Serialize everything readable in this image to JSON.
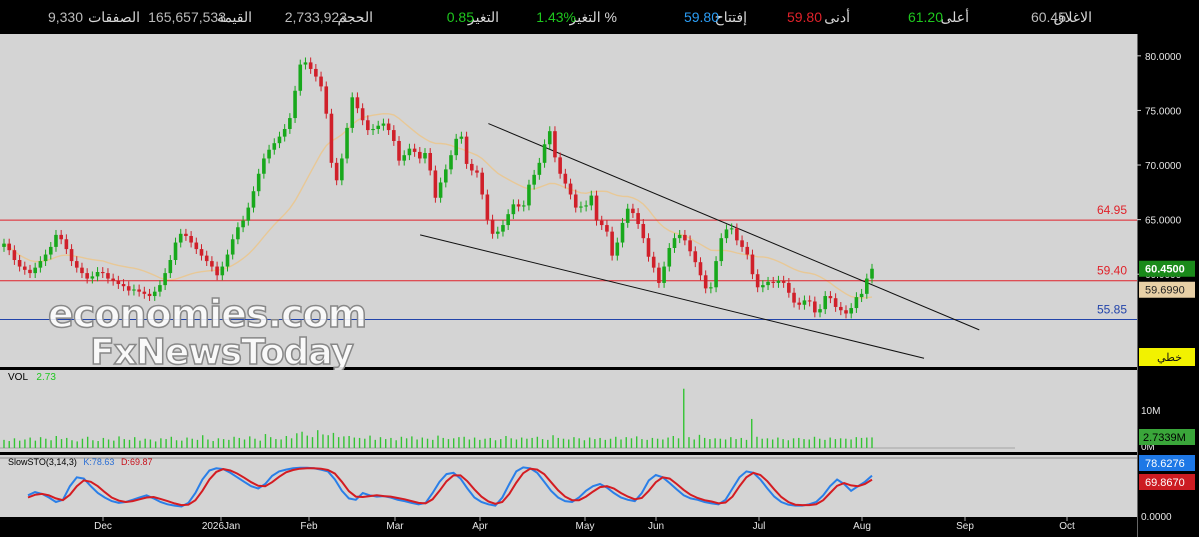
{
  "topbar": {
    "items": [
      {
        "label": "الاغلاق",
        "value": "60.45",
        "value_color": "#bcbcbc"
      },
      {
        "label": "أعلى",
        "value": "61.20",
        "value_color": "#1ec71e"
      },
      {
        "label": "أدنى",
        "value": "59.80",
        "value_color": "#e0222a"
      },
      {
        "label": "إفتتاح",
        "value": "59.80",
        "value_color": "#2b9df4"
      },
      {
        "label": "التغير %",
        "value": "1.43%",
        "value_color": "#1ec71e"
      },
      {
        "label": "التغير",
        "value": "0.85",
        "value_color": "#1ec71e"
      },
      {
        "label": "الحجم",
        "value": "2,733,923",
        "value_color": "#bcbcbc"
      },
      {
        "label": "القيمة",
        "value": "165,657,533",
        "value_color": "#bcbcbc"
      },
      {
        "label": "الصفقات",
        "value": "9,330",
        "value_color": "#bcbcbc"
      }
    ]
  },
  "watermark": {
    "line1": "economies.com",
    "line2": "FxNewsToday"
  },
  "chart_data": {
    "type": "candlestick",
    "price_axis": {
      "ylim": [
        51.5,
        82.0
      ],
      "ticks": [
        "80.0000",
        "75.0000",
        "70.0000",
        "65.0000",
        "60.0000"
      ]
    },
    "time_axis": {
      "labels": [
        "Dec",
        "2026Jan",
        "Feb",
        "Mar",
        "Apr",
        "May",
        "Jun",
        "Jul",
        "Aug",
        "Sep",
        "Oct"
      ]
    },
    "horizontal_lines": [
      {
        "value": 64.95,
        "label": "64.95",
        "color": "#e0222a"
      },
      {
        "value": 59.4,
        "label": "59.40",
        "color": "#e0222a"
      },
      {
        "value": 55.85,
        "label": "55.85",
        "color": "#2244aa"
      }
    ],
    "wedge_lines": [
      {
        "from": {
          "date": "2026-04-12",
          "value": 73.8
        },
        "to": {
          "date": "2026-09-10",
          "value": 54.9
        }
      },
      {
        "from": {
          "date": "2026-03-22",
          "value": 63.6
        },
        "to": {
          "date": "2026-08-24",
          "value": 52.3
        }
      }
    ],
    "price_badges": {
      "last": "60.4500",
      "ma": "59.6990",
      "line_tool": "خطي"
    },
    "closes": [
      62.8,
      62.2,
      61.3,
      60.7,
      60.4,
      60.1,
      60.6,
      61.2,
      61.8,
      62.5,
      63.6,
      63.2,
      62.3,
      61.2,
      60.6,
      60.1,
      59.6,
      59.8,
      60.2,
      60.1,
      59.6,
      59.4,
      59.1,
      58.9,
      58.5,
      58.6,
      58.4,
      58.2,
      58.0,
      58.4,
      59.0,
      60.1,
      61.3,
      62.9,
      63.7,
      63.5,
      62.9,
      62.3,
      61.7,
      61.2,
      60.7,
      59.9,
      60.7,
      61.8,
      63.2,
      64.3,
      64.9,
      66.1,
      67.6,
      69.2,
      70.6,
      71.4,
      72.0,
      72.6,
      73.3,
      74.3,
      76.8,
      79.2,
      79.4,
      78.8,
      78.1,
      77.2,
      74.7,
      70.2,
      68.6,
      70.6,
      73.4,
      76.2,
      75.2,
      74.1,
      73.2,
      73.3,
      73.6,
      73.8,
      73.2,
      72.2,
      70.4,
      70.9,
      71.5,
      71.2,
      70.6,
      71.1,
      69.5,
      67.0,
      68.4,
      69.6,
      70.9,
      72.4,
      72.6,
      70.1,
      69.5,
      69.3,
      67.3,
      65.0,
      63.7,
      63.9,
      64.5,
      65.5,
      66.4,
      66.2,
      66.3,
      68.2,
      69.1,
      70.2,
      71.9,
      73.1,
      70.7,
      69.2,
      68.3,
      67.3,
      66.1,
      66.2,
      66.3,
      67.2,
      64.9,
      64.5,
      63.9,
      61.7,
      62.9,
      64.7,
      66.0,
      65.6,
      64.6,
      63.3,
      61.6,
      60.6,
      59.2,
      60.7,
      62.4,
      63.3,
      63.6,
      63.1,
      62.1,
      61.1,
      59.9,
      58.7,
      58.8,
      61.2,
      63.3,
      64.1,
      64.2,
      63.1,
      62.5,
      61.8,
      60.0,
      58.8,
      59.0,
      59.3,
      59.2,
      59.4,
      59.2,
      58.3,
      57.4,
      57.2,
      57.6,
      57.5,
      56.5,
      56.8,
      58.0,
      57.8,
      57.0,
      56.7,
      56.4,
      56.9,
      57.9,
      58.2,
      59.6,
      60.5
    ]
  },
  "volume": {
    "label": "VOL",
    "value": "2.73",
    "ticks": [
      "10M",
      "0M"
    ],
    "badge": "2.7339M",
    "values_m": [
      2.1,
      1.8,
      2.5,
      1.9,
      2.2,
      2.7,
      1.9,
      2.8,
      2.4,
      2.0,
      3.1,
      2.3,
      2.6,
      2.0,
      1.7,
      2.4,
      2.9,
      2.0,
      1.8,
      2.6,
      2.2,
      1.9,
      3.0,
      2.3,
      2.1,
      2.8,
      1.9,
      2.4,
      2.2,
      1.7,
      2.5,
      2.3,
      2.9,
      2.0,
      1.9,
      2.7,
      2.4,
      2.1,
      3.3,
      2.2,
      1.8,
      2.5,
      2.3,
      2.1,
      2.9,
      2.6,
      2.2,
      3.0,
      2.4,
      1.9,
      3.6,
      2.8,
      2.3,
      2.2,
      3.1,
      2.5,
      3.8,
      4.2,
      3.2,
      2.8,
      4.6,
      3.5,
      3.3,
      3.9,
      2.8,
      3.0,
      3.1,
      2.7,
      2.6,
      2.4,
      3.2,
      2.1,
      2.8,
      2.3,
      2.6,
      2.0,
      2.9,
      2.5,
      3.0,
      2.2,
      2.7,
      2.4,
      2.1,
      3.2,
      2.6,
      2.3,
      2.5,
      2.8,
      2.9,
      2.2,
      2.7,
      2.1,
      2.4,
      2.6,
      2.0,
      2.3,
      3.1,
      2.5,
      2.2,
      2.7,
      2.4,
      2.6,
      2.9,
      2.3,
      2.1,
      3.3,
      2.6,
      2.4,
      2.2,
      2.8,
      2.5,
      2.0,
      2.7,
      2.3,
      2.6,
      2.1,
      2.4,
      2.9,
      2.2,
      2.8,
      2.5,
      3.0,
      2.3,
      2.1,
      2.6,
      2.4,
      2.2,
      2.7,
      3.1,
      2.5,
      15.3,
      2.8,
      2.2,
      3.4,
      2.6,
      2.3,
      2.5,
      2.4,
      2.2,
      2.8,
      2.3,
      2.6,
      2.1,
      7.5,
      2.9,
      2.4,
      2.5,
      2.2,
      2.7,
      2.3,
      2.0,
      2.5,
      2.6,
      2.3,
      2.2,
      2.9,
      2.4,
      2.1,
      2.7,
      2.3,
      2.5,
      2.4,
      2.2,
      2.8,
      2.6,
      2.7,
      2.73
    ]
  },
  "stochastic": {
    "label": "SlowSTO(3,14,3)",
    "k_text": "K:78.63",
    "d_text": "D:69.87",
    "k_badge": "78.6276",
    "d_badge": "69.8670",
    "axis_label": "0.0000",
    "k": [
      35,
      42,
      38,
      30,
      20,
      25,
      55,
      75,
      72,
      55,
      40,
      30,
      22,
      18,
      20,
      25,
      30,
      35,
      28,
      20,
      15,
      12,
      10,
      18,
      40,
      70,
      90,
      95,
      93,
      85,
      75,
      65,
      55,
      50,
      60,
      78,
      88,
      92,
      95,
      96,
      96,
      95,
      92,
      88,
      70,
      45,
      28,
      25,
      40,
      35,
      32,
      33,
      30,
      25,
      22,
      18,
      15,
      18,
      40,
      65,
      82,
      85,
      72,
      50,
      30,
      20,
      15,
      12,
      30,
      60,
      88,
      97,
      95,
      85,
      65,
      45,
      30,
      22,
      20,
      30,
      45,
      55,
      60,
      52,
      40,
      30,
      25,
      22,
      40,
      68,
      80,
      75,
      62,
      48,
      35,
      28,
      25,
      20,
      17,
      15,
      25,
      50,
      75,
      88,
      85,
      70,
      50,
      32,
      20,
      14,
      12,
      12,
      15,
      20,
      35,
      55,
      70,
      60,
      45,
      55,
      65,
      78.63
    ],
    "d": [
      30,
      36,
      38,
      35,
      28,
      24,
      36,
      55,
      68,
      65,
      55,
      42,
      30,
      23,
      20,
      22,
      26,
      30,
      31,
      27,
      22,
      17,
      13,
      14,
      24,
      45,
      70,
      87,
      93,
      90,
      83,
      74,
      64,
      56,
      55,
      64,
      76,
      86,
      91,
      94,
      95,
      95,
      94,
      91,
      83,
      65,
      44,
      32,
      31,
      33,
      35,
      33,
      32,
      29,
      26,
      22,
      18,
      17,
      26,
      45,
      66,
      79,
      79,
      66,
      48,
      32,
      21,
      16,
      20,
      38,
      63,
      84,
      94,
      92,
      82,
      64,
      46,
      32,
      24,
      24,
      32,
      43,
      53,
      55,
      50,
      40,
      32,
      26,
      29,
      45,
      64,
      75,
      72,
      60,
      47,
      36,
      29,
      24,
      21,
      17,
      19,
      32,
      55,
      75,
      85,
      80,
      66,
      48,
      31,
      20,
      14,
      13,
      13,
      15,
      24,
      40,
      56,
      62,
      57,
      55,
      60,
      69.87
    ]
  }
}
